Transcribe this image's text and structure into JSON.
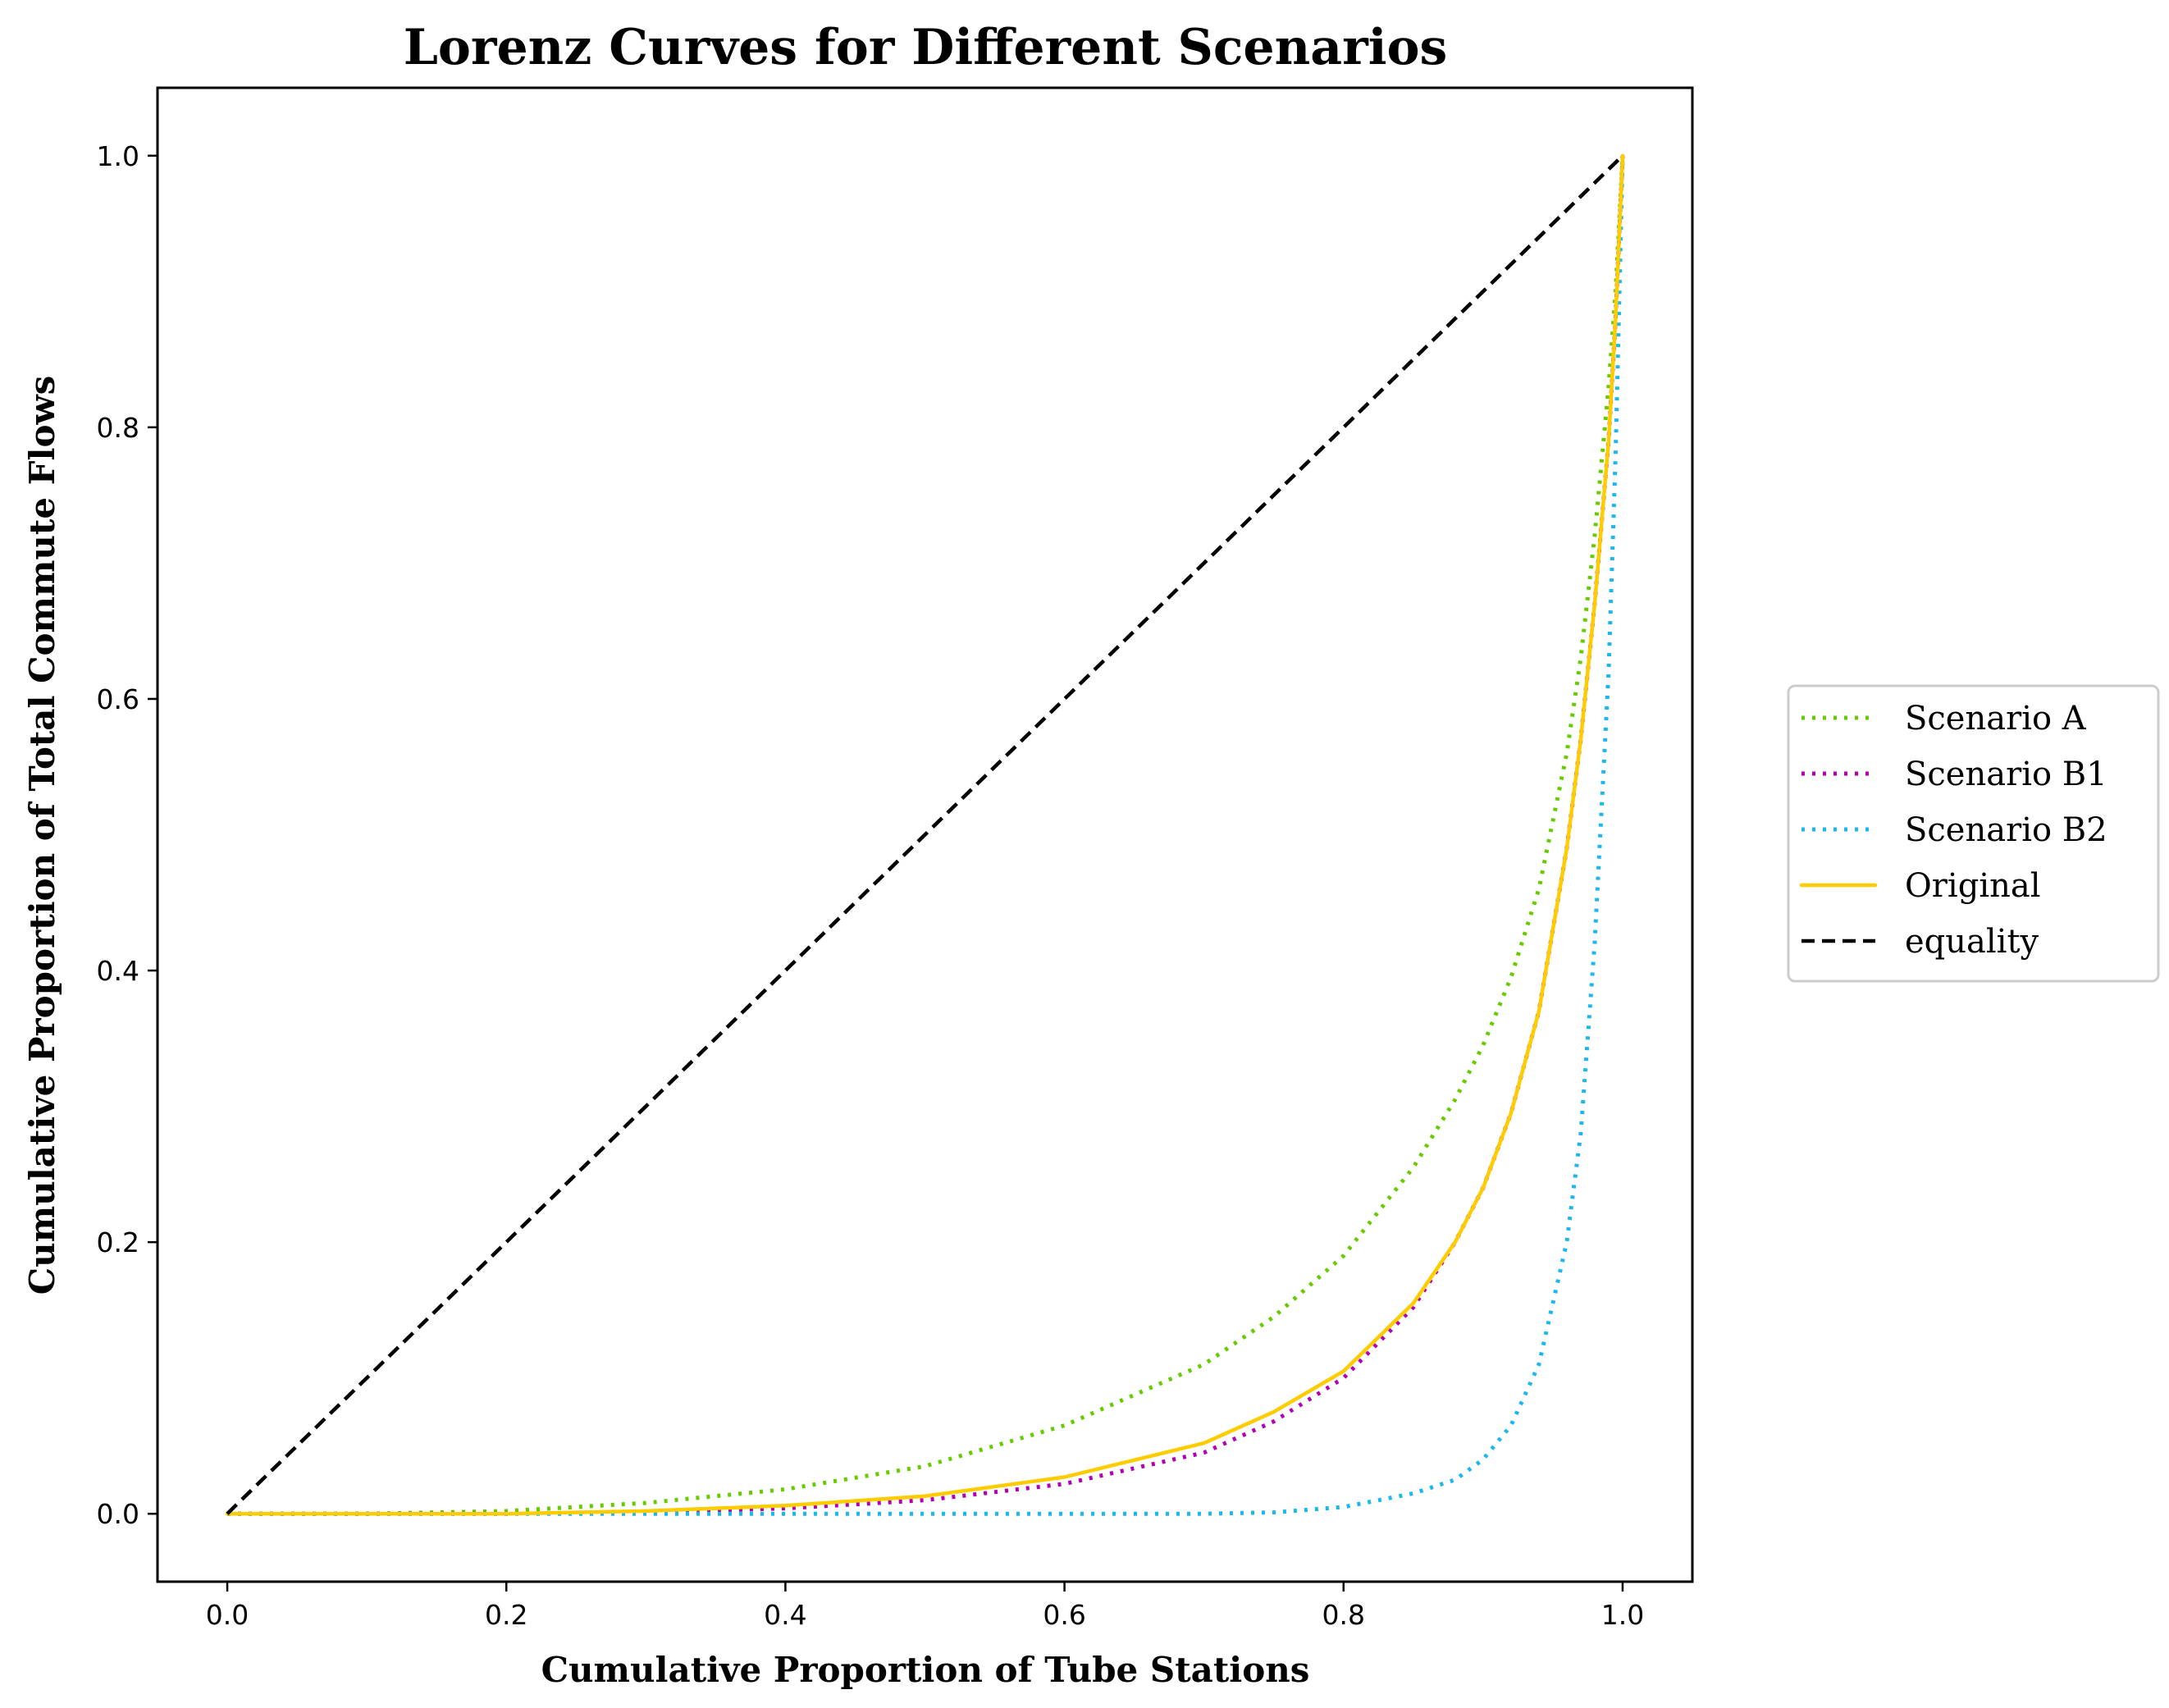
{
  "chart_data": {
    "type": "line",
    "title": "Lorenz Curves for Different Scenarios",
    "xlabel": "Cumulative Proportion of Tube Stations",
    "ylabel": "Cumulative Proportion of Total Commute Flows",
    "xlim": [
      -0.05,
      1.05
    ],
    "ylim": [
      -0.05,
      1.05
    ],
    "xticks": [
      "0.0",
      "0.2",
      "0.4",
      "0.6",
      "0.8",
      "1.0"
    ],
    "yticks": [
      "0.0",
      "0.2",
      "0.4",
      "0.6",
      "0.8",
      "1.0"
    ],
    "grid": false,
    "legend_position": "right",
    "x": [
      0.0,
      0.1,
      0.2,
      0.3,
      0.4,
      0.5,
      0.6,
      0.7,
      0.75,
      0.8,
      0.85,
      0.88,
      0.9,
      0.92,
      0.94,
      0.96,
      0.97,
      0.98,
      0.99,
      0.995,
      1.0
    ],
    "series": [
      {
        "name": "Scenario A",
        "color": "#66cc00",
        "style": "dotted",
        "values": [
          0.0,
          0.0,
          0.002,
          0.008,
          0.018,
          0.035,
          0.065,
          0.11,
          0.145,
          0.19,
          0.255,
          0.305,
          0.345,
          0.395,
          0.46,
          0.56,
          0.63,
          0.72,
          0.83,
          0.9,
          1.0
        ]
      },
      {
        "name": "Scenario B1",
        "color": "#b300b3",
        "style": "dotted",
        "values": [
          0.0,
          0.0,
          0.0,
          0.001,
          0.004,
          0.01,
          0.022,
          0.045,
          0.068,
          0.1,
          0.152,
          0.2,
          0.24,
          0.295,
          0.37,
          0.49,
          0.57,
          0.67,
          0.79,
          0.88,
          1.0
        ]
      },
      {
        "name": "Scenario B2",
        "color": "#1ab8ee",
        "style": "dotted",
        "values": [
          0.0,
          0.0,
          0.0,
          0.0,
          0.0,
          0.0,
          0.0,
          0.0,
          0.001,
          0.005,
          0.015,
          0.025,
          0.04,
          0.065,
          0.11,
          0.2,
          0.28,
          0.42,
          0.62,
          0.78,
          1.0
        ]
      },
      {
        "name": "Original",
        "color": "#ffcc00",
        "style": "solid",
        "values": [
          0.0,
          0.0,
          0.0,
          0.002,
          0.006,
          0.013,
          0.027,
          0.052,
          0.075,
          0.105,
          0.155,
          0.2,
          0.24,
          0.295,
          0.37,
          0.49,
          0.57,
          0.67,
          0.79,
          0.88,
          1.0
        ]
      },
      {
        "name": "equality",
        "color": "#000000",
        "style": "dashed",
        "values": [
          0.0,
          0.1,
          0.2,
          0.3,
          0.4,
          0.5,
          0.6,
          0.7,
          0.75,
          0.8,
          0.85,
          0.88,
          0.9,
          0.92,
          0.94,
          0.96,
          0.97,
          0.98,
          0.99,
          0.995,
          1.0
        ]
      }
    ]
  }
}
